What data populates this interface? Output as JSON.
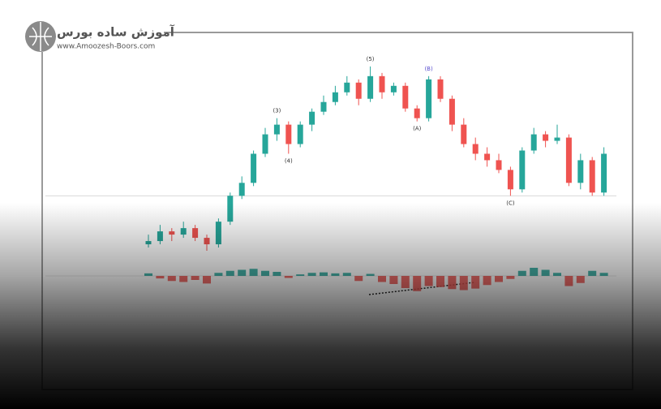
{
  "header": {
    "brand": "آموزش ساده بورس",
    "url": "www.Amoozesh-Boors.com"
  },
  "chart_data": {
    "type": "candlestick",
    "open": [
      0.827,
      0.828,
      0.831,
      0.83,
      0.832,
      0.829,
      0.827,
      0.834,
      0.842,
      0.846,
      0.855,
      0.861,
      0.864,
      0.858,
      0.864,
      0.868,
      0.871,
      0.874,
      0.877,
      0.872,
      0.879,
      0.874,
      0.876,
      0.869,
      0.866,
      0.878,
      0.872,
      0.864,
      0.858,
      0.855,
      0.853,
      0.85,
      0.844,
      0.856,
      0.861,
      0.859,
      0.86,
      0.846,
      0.853,
      0.843
    ],
    "high": [
      0.83,
      0.833,
      0.832,
      0.834,
      0.833,
      0.83,
      0.835,
      0.843,
      0.848,
      0.856,
      0.863,
      0.866,
      0.865,
      0.865,
      0.869,
      0.873,
      0.876,
      0.879,
      0.878,
      0.882,
      0.88,
      0.877,
      0.877,
      0.87,
      0.879,
      0.879,
      0.873,
      0.866,
      0.86,
      0.857,
      0.855,
      0.851,
      0.857,
      0.863,
      0.862,
      0.864,
      0.861,
      0.855,
      0.854,
      0.857
    ],
    "low": [
      0.826,
      0.827,
      0.828,
      0.829,
      0.828,
      0.825,
      0.826,
      0.833,
      0.841,
      0.845,
      0.854,
      0.859,
      0.855,
      0.857,
      0.862,
      0.867,
      0.87,
      0.873,
      0.87,
      0.871,
      0.872,
      0.873,
      0.868,
      0.865,
      0.865,
      0.871,
      0.862,
      0.857,
      0.853,
      0.851,
      0.849,
      0.842,
      0.843,
      0.855,
      0.857,
      0.858,
      0.845,
      0.844,
      0.842,
      0.842
    ],
    "close": [
      0.828,
      0.831,
      0.83,
      0.832,
      0.829,
      0.827,
      0.834,
      0.842,
      0.846,
      0.855,
      0.861,
      0.864,
      0.858,
      0.864,
      0.868,
      0.871,
      0.874,
      0.877,
      0.872,
      0.879,
      0.874,
      0.876,
      0.869,
      0.866,
      0.878,
      0.872,
      0.864,
      0.858,
      0.855,
      0.853,
      0.85,
      0.844,
      0.856,
      0.861,
      0.859,
      0.86,
      0.846,
      0.853,
      0.843,
      0.855
    ],
    "up_color": "#26a69a",
    "down_color": "#ef5350",
    "ylim": [
      0.824,
      0.89
    ],
    "hline": 0.842,
    "annotations": [
      "(3)",
      "(4)",
      "(5)",
      "(A)",
      "(B)",
      "(C)"
    ],
    "histogram": [
      0.0005,
      -0.0005,
      -0.001,
      -0.0012,
      -0.0008,
      -0.0015,
      0.0006,
      0.001,
      0.0012,
      0.0014,
      0.001,
      0.0008,
      -0.0004,
      0.0003,
      0.0006,
      0.0007,
      0.0005,
      0.0006,
      -0.001,
      0.0004,
      -0.0012,
      -0.0016,
      -0.0024,
      -0.003,
      -0.002,
      -0.0022,
      -0.0026,
      -0.0028,
      -0.0025,
      -0.0018,
      -0.0012,
      -0.0006,
      0.001,
      0.0016,
      0.0012,
      0.0006,
      -0.002,
      -0.0014,
      0.001,
      0.0006
    ],
    "hlim": [
      -0.004,
      0.004
    ]
  }
}
